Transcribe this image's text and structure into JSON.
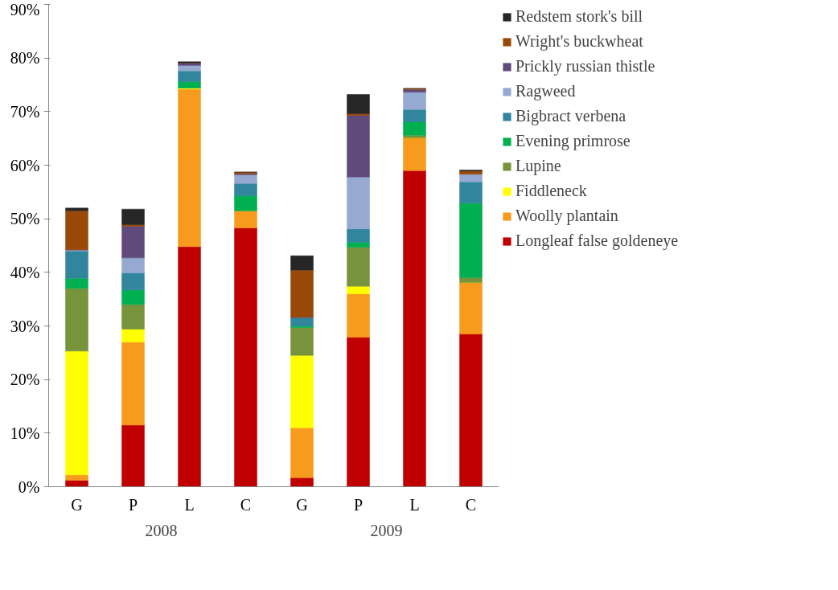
{
  "chart_data": {
    "type": "bar",
    "stacked": true,
    "legend": "right",
    "grid": false,
    "categories": [
      "G",
      "P",
      "L",
      "C",
      "G",
      "P",
      "L",
      "C"
    ],
    "annotations": [
      "2008",
      "2009"
    ],
    "ylim": [
      0,
      90
    ],
    "yticks": [
      {
        "value": 0,
        "label": "0%"
      },
      {
        "value": 10,
        "label": "10%"
      },
      {
        "value": 20,
        "label": "20%"
      },
      {
        "value": 30,
        "label": "30%"
      },
      {
        "value": 40,
        "label": "40%"
      },
      {
        "value": 50,
        "label": "50%"
      },
      {
        "value": 60,
        "label": "60%"
      },
      {
        "value": 70,
        "label": "70%"
      },
      {
        "value": 80,
        "label": "80%"
      },
      {
        "value": 90,
        "label": "90%"
      }
    ],
    "series": [
      {
        "name": "Longleaf false goldeneye",
        "color": "#c00000",
        "values": [
          1.2,
          11.5,
          44.8,
          48.3,
          1.7,
          27.9,
          59.0,
          28.5
        ]
      },
      {
        "name": "Woolly plantain",
        "color": "#f79b1e",
        "values": [
          1.0,
          15.5,
          29.4,
          3.2,
          9.3,
          8.1,
          6.1,
          9.6
        ]
      },
      {
        "name": "Fiddleneck",
        "color": "#ffff00",
        "values": [
          23.1,
          2.4,
          0.2,
          0,
          13.5,
          1.4,
          0,
          0
        ]
      },
      {
        "name": "Lupine",
        "color": "#77933c",
        "values": [
          11.7,
          4.6,
          0,
          0,
          5.2,
          7.3,
          0.5,
          0.9
        ]
      },
      {
        "name": "Evening primrose",
        "color": "#00b050",
        "values": [
          1.9,
          2.7,
          1.2,
          2.8,
          0.3,
          0.9,
          2.5,
          13.9
        ]
      },
      {
        "name": "Bigbract verbena",
        "color": "#31859c",
        "values": [
          5.1,
          3.2,
          2.0,
          2.3,
          1.6,
          2.5,
          2.3,
          4.0
        ]
      },
      {
        "name": "Ragweed",
        "color": "#95a9d1",
        "values": [
          0.2,
          2.8,
          1.0,
          1.6,
          0,
          9.7,
          3.2,
          1.4
        ]
      },
      {
        "name": "Prickly russian thistle",
        "color": "#604a7b",
        "values": [
          0,
          5.9,
          0.5,
          0.2,
          0,
          11.5,
          0.5,
          null
        ]
      },
      {
        "name": "Wright's buckwheat",
        "color": "#984807",
        "values": [
          7.3,
          0.3,
          0,
          0.3,
          8.8,
          0.3,
          0.2,
          0.6
        ]
      },
      {
        "name": "Redstem stork's bill",
        "color": "#262626",
        "values": [
          0.5,
          2.9,
          0.2,
          0,
          2.7,
          3.6,
          0,
          0.2
        ]
      }
    ]
  }
}
